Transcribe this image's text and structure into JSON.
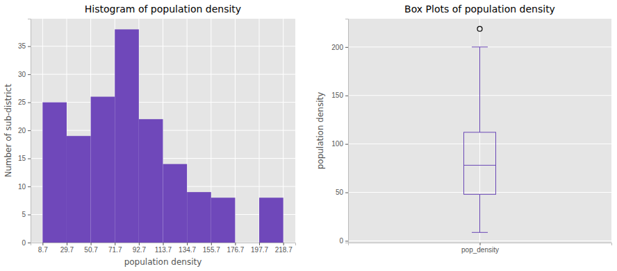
{
  "chart_data": [
    {
      "type": "histogram",
      "title": "Histogram of population density",
      "x_label": "population density",
      "y_label": "Number of sub-district",
      "bins": [
        8.7,
        29.7,
        50.7,
        71.7,
        92.7,
        113.7,
        134.7,
        155.7,
        176.7,
        197.7,
        218.7
      ],
      "counts": [
        25,
        19,
        26,
        38,
        22,
        14,
        9,
        8,
        0,
        8
      ],
      "color": "#6f48ba",
      "xlim": [
        -1.8,
        229.2
      ],
      "xticks": [
        8.7,
        29.7,
        50.7,
        71.7,
        92.7,
        113.7,
        134.7,
        155.7,
        176.7,
        197.7,
        218.7
      ],
      "ylim": [
        0,
        39.9
      ],
      "yticks": [
        0,
        5,
        10,
        15,
        20,
        25,
        30,
        35
      ],
      "grid": true
    },
    {
      "type": "box",
      "title": "Box Plots of population density",
      "y_label": "population density",
      "categories": [
        "pop_density"
      ],
      "box": {
        "whislo": 8.7,
        "q1": 48,
        "median": 78,
        "q3": 112,
        "whishi": 200,
        "fliers": [
          218.7
        ]
      },
      "color": "#6a48b6",
      "marker": "circle",
      "ylim": [
        -1.8,
        229.2
      ],
      "yticks": [
        0,
        50,
        100,
        150,
        200
      ],
      "grid": true
    }
  ]
}
